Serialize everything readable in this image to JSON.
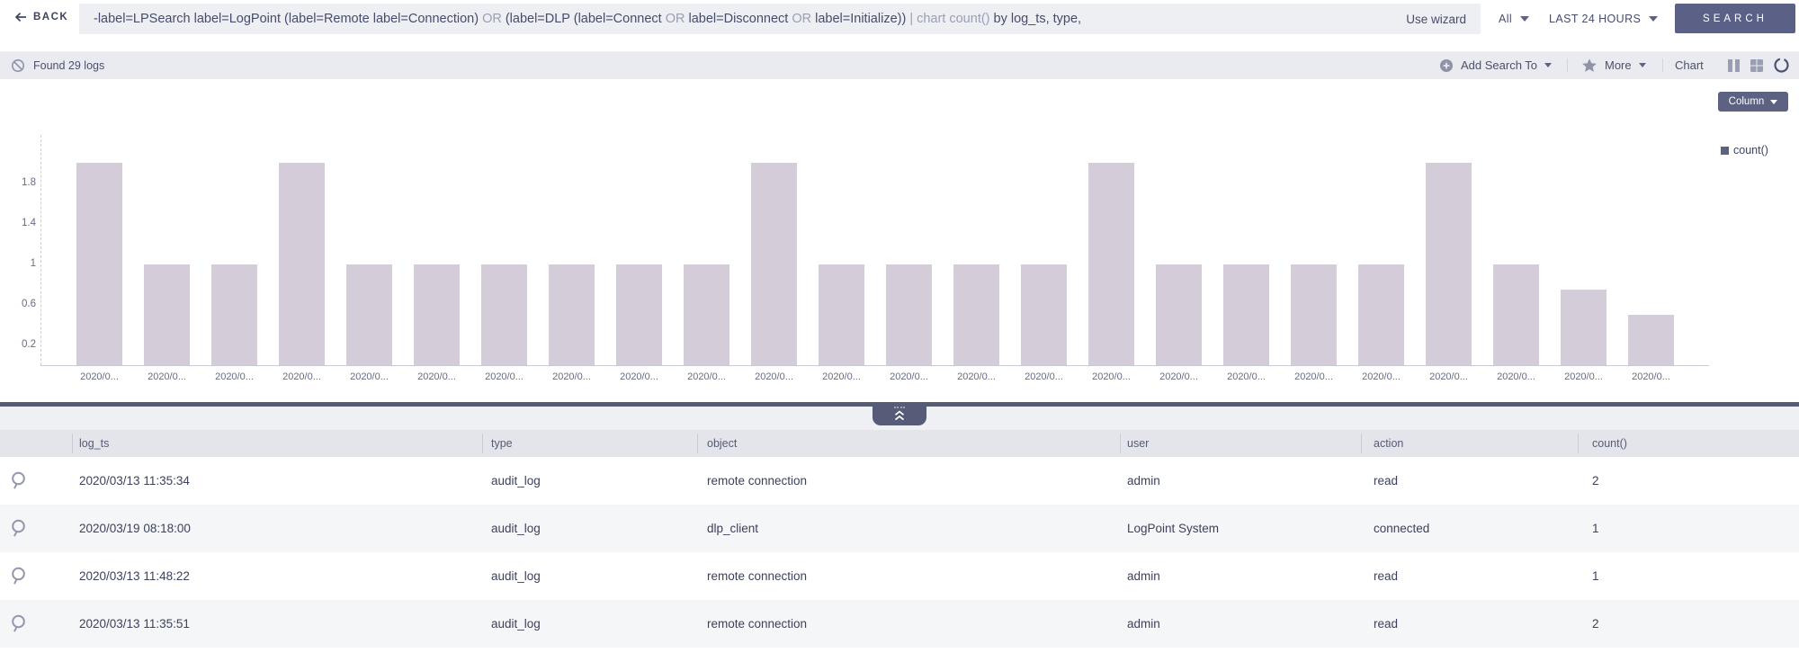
{
  "topbar": {
    "back_label": "BACK",
    "query_segments": [
      {
        "text": "-label=LPSearch label=LogPoint (label=Remote label=Connection) ",
        "muted": false
      },
      {
        "text": "OR",
        "muted": true
      },
      {
        "text": " (label=DLP (label=Connect ",
        "muted": false
      },
      {
        "text": "OR",
        "muted": true
      },
      {
        "text": " label=Disconnect ",
        "muted": false
      },
      {
        "text": "OR",
        "muted": true
      },
      {
        "text": " label=Initialize)) ",
        "muted": false
      },
      {
        "text": "| chart count() ",
        "muted": true
      },
      {
        "text": "by log_ts, type,",
        "muted": false
      }
    ],
    "use_wizard": "Use wizard",
    "scope": "All",
    "time_range": "LAST 24 HOURS",
    "search_label": "SEARCH"
  },
  "toolbar": {
    "result_count": "Found 29 logs",
    "add_search_to": "Add Search To",
    "more": "More",
    "chart_label": "Chart"
  },
  "chart": {
    "type_selector": "Column",
    "bar_color": "#d4cdd9",
    "legend_color": "#5d6180",
    "accent_color": "#5b6186"
  },
  "chart_data": {
    "type": "bar",
    "title": "",
    "xlabel": "",
    "ylabel": "",
    "legend": [
      "count()"
    ],
    "legend_position": "top-right",
    "grid": false,
    "ylim": [
      0,
      2.2
    ],
    "yticks": [
      "1.8",
      "1.4",
      "1",
      "0.6",
      "0.2"
    ],
    "ytick_values": [
      1.8,
      1.4,
      1,
      0.6,
      0.2
    ],
    "categories": [
      "2020/0...",
      "2020/0...",
      "2020/0...",
      "2020/0...",
      "2020/0...",
      "2020/0...",
      "2020/0...",
      "2020/0...",
      "2020/0...",
      "2020/0...",
      "2020/0...",
      "2020/0...",
      "2020/0...",
      "2020/0...",
      "2020/0...",
      "2020/0...",
      "2020/0...",
      "2020/0...",
      "2020/0...",
      "2020/0...",
      "2020/0...",
      "2020/0...",
      "2020/0...",
      "2020/0..."
    ],
    "values": [
      2,
      1,
      1,
      2,
      1,
      1,
      1,
      1,
      1,
      1,
      2,
      1,
      1,
      1,
      1,
      2,
      1,
      1,
      1,
      1,
      2,
      1,
      0.75,
      0.5
    ]
  },
  "table": {
    "columns": [
      "log_ts",
      "type",
      "object",
      "user",
      "action",
      "count()"
    ],
    "rows": [
      {
        "log_ts": "2020/03/13 11:35:34",
        "type": "audit_log",
        "object": "remote connection",
        "user": "admin",
        "action": "read",
        "count": "2"
      },
      {
        "log_ts": "2020/03/19 08:18:00",
        "type": "audit_log",
        "object": "dlp_client",
        "user": "LogPoint System",
        "action": "connected",
        "count": "1"
      },
      {
        "log_ts": "2020/03/13 11:48:22",
        "type": "audit_log",
        "object": "remote connection",
        "user": "admin",
        "action": "read",
        "count": "1"
      },
      {
        "log_ts": "2020/03/13 11:35:51",
        "type": "audit_log",
        "object": "remote connection",
        "user": "admin",
        "action": "read",
        "count": "2"
      }
    ]
  }
}
